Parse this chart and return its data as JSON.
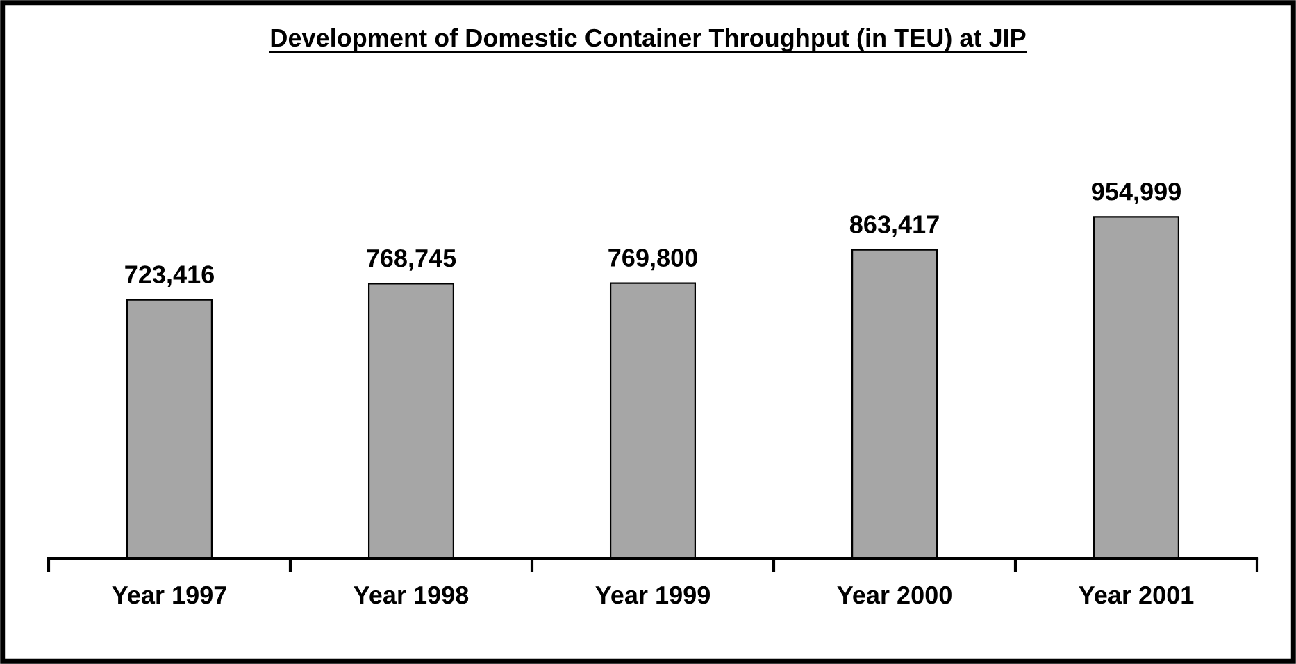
{
  "chart_data": {
    "type": "bar",
    "title": "Development of Domestic Container Throughput (in TEU) at JIP",
    "categories": [
      "Year 1997",
      "Year 1998",
      "Year 1999",
      "Year 2000",
      "Year 2001"
    ],
    "values": [
      723416,
      768745,
      769800,
      863417,
      954999
    ],
    "color": "#a6a6a6",
    "value_labels": [
      "723,416",
      "768,745",
      "769,800",
      "863,417",
      "954,999"
    ],
    "grid": false,
    "legend": false
  }
}
